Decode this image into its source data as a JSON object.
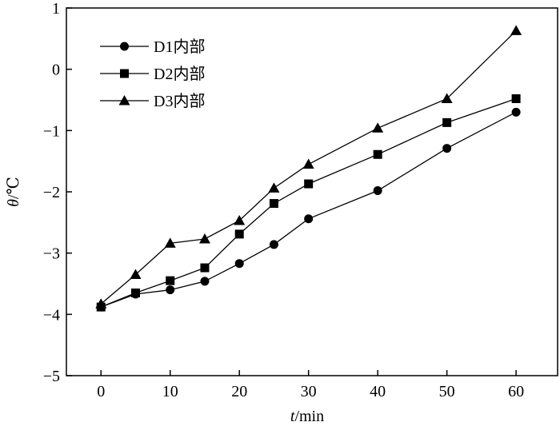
{
  "chart_data": {
    "type": "line",
    "xlabel_var": "t",
    "xlabel_unit": "/min",
    "ylabel_var": "θ",
    "ylabel_unit": "/℃",
    "xlim": [
      -5,
      66
    ],
    "ylim": [
      -5,
      1
    ],
    "xticks": [
      0,
      10,
      20,
      30,
      40,
      50,
      60
    ],
    "yticks": [
      -5,
      -4,
      -3,
      -2,
      -1,
      0,
      1
    ],
    "legend_position": "top-left",
    "grid": false,
    "series": [
      {
        "name": "D1内部",
        "marker": "circle",
        "x": [
          0,
          5,
          10,
          15,
          20,
          25,
          30,
          40,
          50,
          60
        ],
        "y": [
          -3.88,
          -3.67,
          -3.6,
          -3.46,
          -3.17,
          -2.86,
          -2.44,
          -1.98,
          -1.29,
          -0.7
        ]
      },
      {
        "name": "D2内部",
        "marker": "square",
        "x": [
          0,
          5,
          10,
          15,
          20,
          25,
          30,
          40,
          50,
          60
        ],
        "y": [
          -3.88,
          -3.65,
          -3.45,
          -3.24,
          -2.69,
          -2.19,
          -1.87,
          -1.39,
          -0.87,
          -0.48
        ]
      },
      {
        "name": "D3内部",
        "marker": "triangle",
        "x": [
          0,
          5,
          10,
          15,
          20,
          25,
          30,
          40,
          50,
          60
        ],
        "y": [
          -3.83,
          -3.35,
          -2.84,
          -2.77,
          -2.47,
          -1.94,
          -1.55,
          -0.96,
          -0.48,
          0.63
        ]
      }
    ]
  }
}
